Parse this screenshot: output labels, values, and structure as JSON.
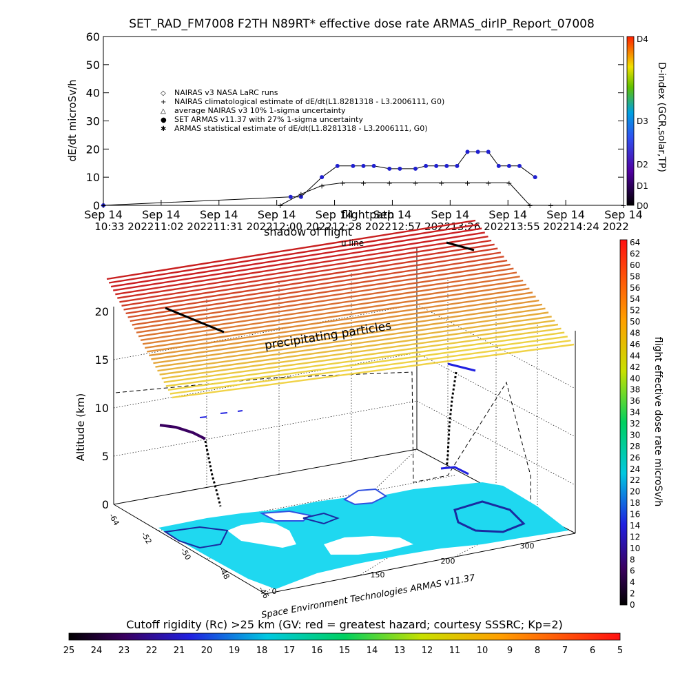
{
  "chart_data": [
    {
      "type": "scatter",
      "title": "SET_RAD_FM7008   F2TH N89RT* effective dose rate ARMAS_dirIP_Report_07008",
      "ylabel": "dE/dt microSv/h",
      "ylim": [
        0,
        60
      ],
      "yticks": [
        "0",
        "10",
        "20",
        "30",
        "40",
        "50",
        "60"
      ],
      "xticks": [
        {
          "l1": "Sep 14",
          "l2": "10:33"
        },
        {
          "l1": "Sep 14",
          "l2": "2022"
        },
        {
          "l1": "Sep 14",
          "l2": "11:02 2022"
        },
        {
          "l1": "Sep 14",
          "l2": "11:31 2022"
        },
        {
          "l1": "Sep 14",
          "l2": "12:00 2022"
        },
        {
          "l1": "Sep 14",
          "l2": "12:28 2022"
        },
        {
          "l1": "Sep 14",
          "l2": "12:57 2022"
        },
        {
          "l1": "Sep 14",
          "l2": "13:26 2022"
        },
        {
          "l1": "Sep 14",
          "l2": "13:55 2022"
        },
        {
          "l1": "Sep 14",
          "l2": "14:24 2022"
        }
      ],
      "xtick_row2_text": "10:33 202211:02 202211:31 202212:00 202212:28 202212:57 202213:26 202213:55 202214:24 2022",
      "legend": [
        "NAIRAS v3 NASA LaRC runs",
        "NAIRAS climatological estimate of dE/dt(L1.8281318 - L3.2006111, G0)",
        "average NAIRAS v3 10% 1-sigma uncertainty",
        "SET ARMAS v11.37 with 27% 1-sigma uncertainty",
        "ARMAS statistical estimate of dE/dt(L1.8281318 - L3.2006111, G0)"
      ],
      "legend_placement": "upper-left",
      "right_axis": {
        "label": "D-index (GCR,solar,TP)",
        "ticks": [
          "D0",
          "D1",
          "D2",
          "D3",
          "D4"
        ]
      },
      "series": [
        {
          "name": "SET ARMAS v11.37 with 27% 1-sigma uncertainty",
          "color": "#2020d0",
          "x": [
            0.0,
            0.36,
            0.38,
            0.42,
            0.45,
            0.48,
            0.5,
            0.52,
            0.55,
            0.57,
            0.6,
            0.62,
            0.64,
            0.66,
            0.68,
            0.7,
            0.72,
            0.74,
            0.76,
            0.78,
            0.8,
            0.83
          ],
          "y": [
            0,
            3,
            3,
            10,
            14,
            14,
            14,
            14,
            13,
            13,
            13,
            14,
            14,
            14,
            14,
            19,
            19,
            19,
            14,
            14,
            14,
            10
          ]
        },
        {
          "name": "NAIRAS v3 NASA LaRC runs",
          "color": "#000000",
          "x": [
            0.0,
            0.34,
            0.38,
            0.42,
            0.46,
            0.5,
            0.55,
            0.6,
            0.65,
            0.7,
            0.74,
            0.78,
            0.82,
            0.86,
            1.0
          ],
          "y": [
            0,
            0,
            4,
            7,
            8,
            8,
            8,
            8,
            8,
            8,
            8,
            8,
            0,
            0,
            0
          ]
        }
      ]
    },
    {
      "type": "scatter",
      "subtype": "3d-trajectory",
      "overlay_texts": [
        "flightpath",
        "shadow of flight",
        "u line",
        "precipitating particles"
      ],
      "zlabel": "Altitude (km)",
      "zticks": [
        "0",
        "5",
        "10",
        "15",
        "20"
      ],
      "ticks_a": [
        "0",
        "150",
        "200",
        "300"
      ],
      "ticks_b": [
        "-64",
        "-52",
        "-50",
        "-48",
        "-46"
      ],
      "colorbar": {
        "label": "flight effective dose rate microSv/h",
        "ticks": [
          "0",
          "2",
          "4",
          "6",
          "8",
          "10",
          "12",
          "14",
          "16",
          "18",
          "20",
          "22",
          "24",
          "26",
          "28",
          "30",
          "32",
          "34",
          "36",
          "38",
          "40",
          "42",
          "44",
          "46",
          "48",
          "50",
          "52",
          "54",
          "56",
          "58",
          "60",
          "62",
          "64"
        ]
      },
      "credit": "Space Environment Technologies ARMAS v11.37"
    },
    {
      "type": "heatmap",
      "title": "Cutoff rigidity (Rc) >25 km (GV: red = greatest hazard; courtesy SSSRC; Kp=2)",
      "ticks": [
        "25",
        "24",
        "23",
        "22",
        "21",
        "20",
        "19",
        "18",
        "17",
        "16",
        "15",
        "14",
        "13",
        "12",
        "11",
        "10",
        "9",
        "8",
        "7",
        "6",
        "5"
      ]
    }
  ]
}
